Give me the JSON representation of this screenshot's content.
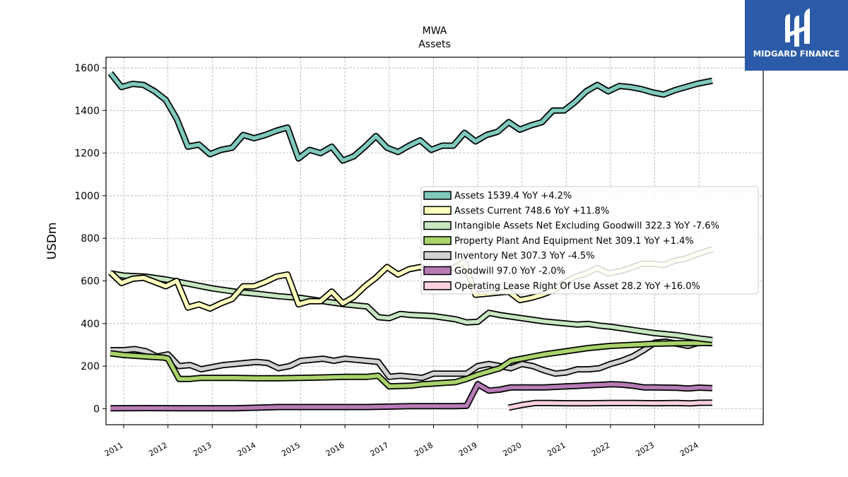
{
  "logo": {
    "text": "MIDGARD FINANCE",
    "icon": "midgard-logo-icon",
    "background": "#2b5aa8"
  },
  "chart_data": {
    "type": "line",
    "title": "MWA",
    "subtitle": "Assets",
    "xlabel": "",
    "ylabel": "USDm",
    "xlim": [
      2010.6,
      2025.45
    ],
    "ylim": [
      -75,
      1650
    ],
    "x_ticks": [
      "2011",
      "2012",
      "2013",
      "2014",
      "2015",
      "2016",
      "2017",
      "2018",
      "2019",
      "2020",
      "2021",
      "2022",
      "2023",
      "2024"
    ],
    "y_ticks": [
      0,
      200,
      400,
      600,
      800,
      1000,
      1200,
      1400,
      1600
    ],
    "grid": true,
    "legend_position": "center-right",
    "series": [
      {
        "name": "Assets",
        "legend": "Assets  1539.4 YoY +4.2%",
        "color": "#7fc9bd",
        "points": [
          [
            2010.7,
            1575
          ],
          [
            2010.95,
            1510
          ],
          [
            2011.2,
            1525
          ],
          [
            2011.45,
            1520
          ],
          [
            2011.7,
            1490
          ],
          [
            2011.95,
            1450
          ],
          [
            2012.2,
            1360
          ],
          [
            2012.45,
            1230
          ],
          [
            2012.7,
            1240
          ],
          [
            2012.95,
            1195
          ],
          [
            2013.2,
            1215
          ],
          [
            2013.45,
            1225
          ],
          [
            2013.7,
            1285
          ],
          [
            2013.95,
            1270
          ],
          [
            2014.2,
            1285
          ],
          [
            2014.45,
            1305
          ],
          [
            2014.7,
            1320
          ],
          [
            2014.95,
            1175
          ],
          [
            2015.2,
            1215
          ],
          [
            2015.45,
            1200
          ],
          [
            2015.7,
            1230
          ],
          [
            2015.95,
            1165
          ],
          [
            2016.2,
            1185
          ],
          [
            2016.45,
            1230
          ],
          [
            2016.7,
            1280
          ],
          [
            2016.95,
            1225
          ],
          [
            2017.2,
            1205
          ],
          [
            2017.45,
            1235
          ],
          [
            2017.7,
            1260
          ],
          [
            2017.95,
            1215
          ],
          [
            2018.2,
            1235
          ],
          [
            2018.45,
            1235
          ],
          [
            2018.7,
            1295
          ],
          [
            2018.95,
            1255
          ],
          [
            2019.2,
            1285
          ],
          [
            2019.45,
            1300
          ],
          [
            2019.7,
            1345
          ],
          [
            2019.95,
            1310
          ],
          [
            2020.2,
            1330
          ],
          [
            2020.45,
            1345
          ],
          [
            2020.7,
            1400
          ],
          [
            2020.95,
            1400
          ],
          [
            2021.2,
            1440
          ],
          [
            2021.45,
            1490
          ],
          [
            2021.7,
            1520
          ],
          [
            2021.95,
            1490
          ],
          [
            2022.2,
            1515
          ],
          [
            2022.45,
            1510
          ],
          [
            2022.7,
            1500
          ],
          [
            2022.95,
            1485
          ],
          [
            2023.2,
            1475
          ],
          [
            2023.45,
            1495
          ],
          [
            2023.7,
            1510
          ],
          [
            2023.95,
            1525
          ],
          [
            2024.3,
            1539.4
          ]
        ]
      },
      {
        "name": "Assets Current",
        "legend": "Assets Current  748.6 YoY +11.8%",
        "color": "#ffffbe",
        "points": [
          [
            2010.7,
            640
          ],
          [
            2010.95,
            590
          ],
          [
            2011.2,
            610
          ],
          [
            2011.45,
            615
          ],
          [
            2011.7,
            595
          ],
          [
            2011.95,
            575
          ],
          [
            2012.2,
            600
          ],
          [
            2012.45,
            475
          ],
          [
            2012.7,
            490
          ],
          [
            2012.95,
            470
          ],
          [
            2013.2,
            495
          ],
          [
            2013.45,
            515
          ],
          [
            2013.7,
            575
          ],
          [
            2013.95,
            575
          ],
          [
            2014.2,
            595
          ],
          [
            2014.45,
            620
          ],
          [
            2014.7,
            630
          ],
          [
            2014.95,
            490
          ],
          [
            2015.2,
            505
          ],
          [
            2015.45,
            505
          ],
          [
            2015.7,
            550
          ],
          [
            2015.95,
            495
          ],
          [
            2016.2,
            525
          ],
          [
            2016.45,
            575
          ],
          [
            2016.7,
            615
          ],
          [
            2016.95,
            665
          ],
          [
            2017.2,
            630
          ],
          [
            2017.45,
            655
          ],
          [
            2017.7,
            665
          ],
          [
            2017.95,
            650
          ],
          [
            2018.2,
            655
          ],
          [
            2018.45,
            660
          ],
          [
            2018.7,
            690
          ],
          [
            2018.95,
            535
          ],
          [
            2019.2,
            540
          ],
          [
            2019.45,
            545
          ],
          [
            2019.7,
            550
          ],
          [
            2019.95,
            510
          ],
          [
            2020.2,
            520
          ],
          [
            2020.45,
            535
          ],
          [
            2020.7,
            555
          ],
          [
            2020.95,
            590
          ],
          [
            2021.2,
            620
          ],
          [
            2021.45,
            635
          ],
          [
            2021.7,
            660
          ],
          [
            2021.95,
            635
          ],
          [
            2022.2,
            645
          ],
          [
            2022.45,
            660
          ],
          [
            2022.7,
            680
          ],
          [
            2022.95,
            680
          ],
          [
            2023.2,
            675
          ],
          [
            2023.45,
            695
          ],
          [
            2023.7,
            705
          ],
          [
            2023.95,
            725
          ],
          [
            2024.3,
            748.6
          ]
        ]
      },
      {
        "name": "Intangible Assets Net Excluding Goodwill",
        "legend": "Intangible Assets Net Excluding Goodwill  322.3 YoY -7.6%",
        "color": "#c7e7c1",
        "points": [
          [
            2010.7,
            635
          ],
          [
            2011.0,
            625
          ],
          [
            2011.5,
            620
          ],
          [
            2012.0,
            605
          ],
          [
            2012.5,
            585
          ],
          [
            2013.0,
            565
          ],
          [
            2013.5,
            550
          ],
          [
            2014.0,
            540
          ],
          [
            2014.5,
            528
          ],
          [
            2015.0,
            520
          ],
          [
            2015.5,
            505
          ],
          [
            2016.0,
            490
          ],
          [
            2016.5,
            480
          ],
          [
            2016.75,
            430
          ],
          [
            2017.0,
            425
          ],
          [
            2017.25,
            445
          ],
          [
            2017.5,
            440
          ],
          [
            2018.0,
            435
          ],
          [
            2018.5,
            420
          ],
          [
            2018.75,
            405
          ],
          [
            2019.0,
            408
          ],
          [
            2019.25,
            450
          ],
          [
            2019.5,
            440
          ],
          [
            2020.0,
            425
          ],
          [
            2020.5,
            410
          ],
          [
            2021.0,
            400
          ],
          [
            2021.25,
            395
          ],
          [
            2021.5,
            398
          ],
          [
            2021.75,
            390
          ],
          [
            2022.0,
            385
          ],
          [
            2022.5,
            370
          ],
          [
            2023.0,
            355
          ],
          [
            2023.5,
            345
          ],
          [
            2024.0,
            330
          ],
          [
            2024.3,
            322.3
          ]
        ]
      },
      {
        "name": "Property Plant And Equipment Net",
        "legend": "Property Plant And Equipment Net  309.1 YoY +1.4%",
        "color": "#a9d36b",
        "points": [
          [
            2010.7,
            260
          ],
          [
            2011.0,
            252
          ],
          [
            2011.5,
            245
          ],
          [
            2011.9,
            240
          ],
          [
            2012.0,
            235
          ],
          [
            2012.25,
            140
          ],
          [
            2012.5,
            140
          ],
          [
            2012.75,
            145
          ],
          [
            2013.0,
            145
          ],
          [
            2013.5,
            145
          ],
          [
            2014.0,
            143
          ],
          [
            2014.5,
            143
          ],
          [
            2015.0,
            145
          ],
          [
            2015.5,
            147
          ],
          [
            2016.0,
            150
          ],
          [
            2016.5,
            150
          ],
          [
            2016.75,
            155
          ],
          [
            2017.0,
            105
          ],
          [
            2017.5,
            108
          ],
          [
            2017.75,
            115
          ],
          [
            2018.0,
            118
          ],
          [
            2018.5,
            125
          ],
          [
            2018.75,
            140
          ],
          [
            2019.0,
            160
          ],
          [
            2019.25,
            175
          ],
          [
            2019.5,
            190
          ],
          [
            2019.75,
            225
          ],
          [
            2020.0,
            235
          ],
          [
            2020.25,
            245
          ],
          [
            2020.5,
            255
          ],
          [
            2021.0,
            270
          ],
          [
            2021.5,
            285
          ],
          [
            2022.0,
            295
          ],
          [
            2022.5,
            300
          ],
          [
            2023.0,
            305
          ],
          [
            2023.5,
            307
          ],
          [
            2024.0,
            308
          ],
          [
            2024.3,
            309.1
          ]
        ]
      },
      {
        "name": "Inventory Net",
        "legend": "Inventory Net  307.3 YoY -4.5%",
        "color": "#d2d2d2",
        "points": [
          [
            2010.7,
            275
          ],
          [
            2011.0,
            275
          ],
          [
            2011.25,
            280
          ],
          [
            2011.5,
            270
          ],
          [
            2011.75,
            245
          ],
          [
            2012.0,
            255
          ],
          [
            2012.25,
            200
          ],
          [
            2012.5,
            205
          ],
          [
            2012.75,
            185
          ],
          [
            2013.0,
            195
          ],
          [
            2013.25,
            205
          ],
          [
            2013.5,
            210
          ],
          [
            2014.0,
            220
          ],
          [
            2014.25,
            215
          ],
          [
            2014.5,
            190
          ],
          [
            2014.75,
            200
          ],
          [
            2015.0,
            225
          ],
          [
            2015.5,
            235
          ],
          [
            2015.75,
            225
          ],
          [
            2016.0,
            235
          ],
          [
            2016.5,
            225
          ],
          [
            2016.75,
            220
          ],
          [
            2017.0,
            150
          ],
          [
            2017.25,
            155
          ],
          [
            2017.5,
            150
          ],
          [
            2017.75,
            145
          ],
          [
            2018.0,
            165
          ],
          [
            2018.5,
            165
          ],
          [
            2018.75,
            165
          ],
          [
            2019.0,
            200
          ],
          [
            2019.25,
            210
          ],
          [
            2019.5,
            200
          ],
          [
            2019.75,
            190
          ],
          [
            2020.0,
            210
          ],
          [
            2020.25,
            200
          ],
          [
            2020.5,
            180
          ],
          [
            2020.75,
            165
          ],
          [
            2021.0,
            170
          ],
          [
            2021.25,
            185
          ],
          [
            2021.5,
            185
          ],
          [
            2021.75,
            190
          ],
          [
            2022.0,
            210
          ],
          [
            2022.25,
            225
          ],
          [
            2022.5,
            245
          ],
          [
            2022.75,
            275
          ],
          [
            2023.0,
            310
          ],
          [
            2023.25,
            315
          ],
          [
            2023.5,
            305
          ],
          [
            2023.75,
            295
          ],
          [
            2024.0,
            310
          ],
          [
            2024.3,
            307.3
          ]
        ]
      },
      {
        "name": "Goodwill",
        "legend": "Goodwill  97.0 YoY -2.0%",
        "color": "#b77cb6",
        "points": [
          [
            2010.7,
            2
          ],
          [
            2011.5,
            3
          ],
          [
            2012.5,
            2
          ],
          [
            2013.5,
            2
          ],
          [
            2014.5,
            8
          ],
          [
            2015.0,
            8
          ],
          [
            2015.5,
            8
          ],
          [
            2016.5,
            8
          ],
          [
            2017.0,
            10
          ],
          [
            2017.5,
            12
          ],
          [
            2018.0,
            12
          ],
          [
            2018.5,
            12
          ],
          [
            2018.75,
            14
          ],
          [
            2019.0,
            115
          ],
          [
            2019.25,
            85
          ],
          [
            2019.5,
            90
          ],
          [
            2019.75,
            100
          ],
          [
            2020.0,
            100
          ],
          [
            2020.5,
            100
          ],
          [
            2021.0,
            105
          ],
          [
            2021.25,
            107
          ],
          [
            2021.5,
            110
          ],
          [
            2021.75,
            112
          ],
          [
            2022.0,
            115
          ],
          [
            2022.25,
            113
          ],
          [
            2022.5,
            108
          ],
          [
            2022.75,
            100
          ],
          [
            2023.0,
            100
          ],
          [
            2023.5,
            98
          ],
          [
            2023.75,
            95
          ],
          [
            2024.0,
            99
          ],
          [
            2024.3,
            97.0
          ]
        ]
      },
      {
        "name": "Operating Lease Right Of Use Asset",
        "legend": "Operating Lease Right Of Use Asset  28.2 YoY +16.0%",
        "color": "#fcd0de",
        "points": [
          [
            2019.7,
            5
          ],
          [
            2020.0,
            18
          ],
          [
            2020.3,
            27
          ],
          [
            2020.6,
            27
          ],
          [
            2021.0,
            26
          ],
          [
            2021.5,
            26
          ],
          [
            2022.0,
            27
          ],
          [
            2022.5,
            27
          ],
          [
            2023.0,
            26
          ],
          [
            2023.5,
            27
          ],
          [
            2023.8,
            25
          ],
          [
            2024.0,
            28
          ],
          [
            2024.3,
            28.2
          ]
        ]
      }
    ]
  }
}
